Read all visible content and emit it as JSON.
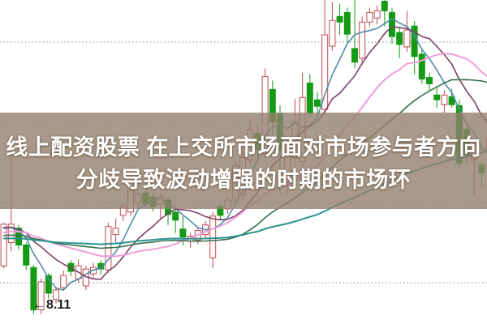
{
  "overlay": {
    "line1": "线上配资股票 在上交所市场面对市场参与者方向",
    "line2": "分歧导致波动增强的时期的市场环",
    "text_color": "#ffffff",
    "banner_color": "rgba(146,127,111,0.8)"
  },
  "chart_data": {
    "type": "candlestick",
    "style": "chinese-kline (red hollow = up, green solid = down)",
    "background": "#ffffff",
    "up_color": "#c24a4f",
    "down_color": "#149a14",
    "grid_color": "#8f8f8f",
    "grid_on": true,
    "price_range": [
      7.95,
      12.08
    ],
    "gridline_prices": [
      11.5,
      10.5,
      9.5,
      8.5
    ],
    "low_marker": {
      "arrow": "←",
      "label": "8.11",
      "price": 8.11,
      "candle_index": 5
    },
    "moving_averages": [
      {
        "name": "MA5",
        "period": 5,
        "color": "#4f8da6",
        "width": 1.6
      },
      {
        "name": "MA10",
        "period": 10,
        "color": "#7e4168",
        "width": 1.6
      },
      {
        "name": "MA20",
        "period": 20,
        "color": "#ef9ddd",
        "width": 2.0
      },
      {
        "name": "MA30",
        "period": 30,
        "color": "#36714a",
        "width": 1.6
      },
      {
        "name": "MA60",
        "period": 60,
        "color": "#2a9292",
        "width": 2.0
      }
    ],
    "candles": [
      [
        8.71,
        9.25,
        8.68,
        9.23
      ],
      [
        9.0,
        10.16,
        8.89,
        9.23
      ],
      [
        9.18,
        9.22,
        8.91,
        8.97
      ],
      [
        8.97,
        9.0,
        8.66,
        8.72
      ],
      [
        8.69,
        8.72,
        8.11,
        8.16
      ],
      [
        8.16,
        8.55,
        8.11,
        8.51
      ],
      [
        8.59,
        8.62,
        8.3,
        8.37
      ],
      [
        8.29,
        8.45,
        8.24,
        8.41
      ],
      [
        8.44,
        8.65,
        8.4,
        8.59
      ],
      [
        8.74,
        8.78,
        8.58,
        8.64
      ],
      [
        8.55,
        8.79,
        8.5,
        8.71
      ],
      [
        8.46,
        8.71,
        8.41,
        8.67
      ],
      [
        8.61,
        8.75,
        8.55,
        8.69
      ],
      [
        8.74,
        8.78,
        8.6,
        8.67
      ],
      [
        8.66,
        9.25,
        8.62,
        9.2
      ],
      [
        9.1,
        9.3,
        9.0,
        9.18
      ],
      [
        9.34,
        9.49,
        9.27,
        9.45
      ],
      [
        9.38,
        9.7,
        9.33,
        9.65
      ],
      [
        9.5,
        9.67,
        9.44,
        9.6
      ],
      [
        9.62,
        9.66,
        9.42,
        9.48
      ],
      [
        9.57,
        9.62,
        9.39,
        9.45
      ],
      [
        9.48,
        9.62,
        9.28,
        9.57
      ],
      [
        9.53,
        9.57,
        9.22,
        9.35
      ],
      [
        9.38,
        9.43,
        9.12,
        9.28
      ],
      [
        9.17,
        9.33,
        8.96,
        9.07
      ],
      [
        9.02,
        9.12,
        8.93,
        9.08
      ],
      [
        9.03,
        9.2,
        8.98,
        9.15
      ],
      [
        9.1,
        9.27,
        9.05,
        9.22
      ],
      [
        8.81,
        9.38,
        8.68,
        9.33
      ],
      [
        9.45,
        9.49,
        9.28,
        9.34
      ],
      [
        9.42,
        9.58,
        9.36,
        9.53
      ],
      [
        9.55,
        10.02,
        9.5,
        9.96
      ],
      [
        9.6,
        10.16,
        9.52,
        10.06
      ],
      [
        10.03,
        10.55,
        9.98,
        10.41
      ],
      [
        10.36,
        10.46,
        10.06,
        10.16
      ],
      [
        10.11,
        11.17,
        10.05,
        11.07
      ],
      [
        10.91,
        11.02,
        10.35,
        10.51
      ],
      [
        10.61,
        10.71,
        9.62,
        10.16
      ],
      [
        9.76,
        10.31,
        9.6,
        10.21
      ],
      [
        10.06,
        10.79,
        9.95,
        10.51
      ],
      [
        10.01,
        11.12,
        9.95,
        10.81
      ],
      [
        10.99,
        11.1,
        10.55,
        10.61
      ],
      [
        10.78,
        10.88,
        10.6,
        10.7
      ],
      [
        10.66,
        12.03,
        10.6,
        11.59
      ],
      [
        11.45,
        12.0,
        11.39,
        11.77
      ],
      [
        11.82,
        11.98,
        11.59,
        11.75
      ],
      [
        11.87,
        11.93,
        11.5,
        11.6
      ],
      [
        11.42,
        12.03,
        11.18,
        11.25
      ],
      [
        11.3,
        11.82,
        11.22,
        11.75
      ],
      [
        11.75,
        11.93,
        11.7,
        11.87
      ],
      [
        11.8,
        11.96,
        11.72,
        11.89
      ],
      [
        12.01,
        12.03,
        11.7,
        11.89
      ],
      [
        11.87,
        11.92,
        11.48,
        11.57
      ],
      [
        11.62,
        11.68,
        11.3,
        11.47
      ],
      [
        11.44,
        11.89,
        11.38,
        11.65
      ],
      [
        11.7,
        11.76,
        11.1,
        11.32
      ],
      [
        11.35,
        11.42,
        10.98,
        11.04
      ],
      [
        11.06,
        11.12,
        10.88,
        10.98
      ],
      [
        10.84,
        10.95,
        10.68,
        10.78
      ],
      [
        10.72,
        10.9,
        10.62,
        10.84
      ],
      [
        10.82,
        10.92,
        10.68,
        10.72
      ],
      [
        10.71,
        10.78,
        9.92,
        9.99
      ],
      [
        10.41,
        10.46,
        9.98,
        10.09
      ],
      [
        10.04,
        10.26,
        9.58,
        10.22
      ],
      [
        9.97,
        10.02,
        9.7,
        9.87
      ],
      [
        10.13,
        10.41,
        9.96,
        10.31
      ]
    ]
  }
}
